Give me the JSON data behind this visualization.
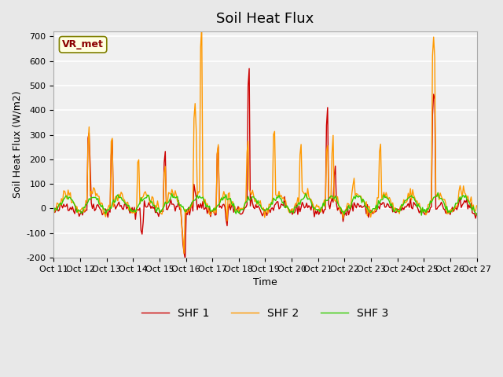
{
  "title": "Soil Heat Flux",
  "ylabel": "Soil Heat Flux (W/m2)",
  "xlabel": "Time",
  "annotation": "VR_met",
  "ylim": [
    -200,
    720
  ],
  "yticks": [
    -200,
    -100,
    0,
    100,
    200,
    300,
    400,
    500,
    600,
    700
  ],
  "xtick_labels": [
    "Oct 11",
    "Oct 12",
    "Oct 13",
    "Oct 14",
    "Oct 15",
    "Oct 16",
    "Oct 17",
    "Oct 18",
    "Oct 19",
    "Oct 20",
    "Oct 21",
    "Oct 22",
    "Oct 23",
    "Oct 24",
    "Oct 25",
    "Oct 26",
    "Oct 27"
  ],
  "legend_labels": [
    "SHF 1",
    "SHF 2",
    "SHF 3"
  ],
  "colors": [
    "#cc0000",
    "#ff9900",
    "#33cc00"
  ],
  "bg_color": "#e8e8e8",
  "plot_bg_color": "#f0f0f0",
  "title_fontsize": 13,
  "label_fontsize": 9,
  "tick_fontsize": 8
}
